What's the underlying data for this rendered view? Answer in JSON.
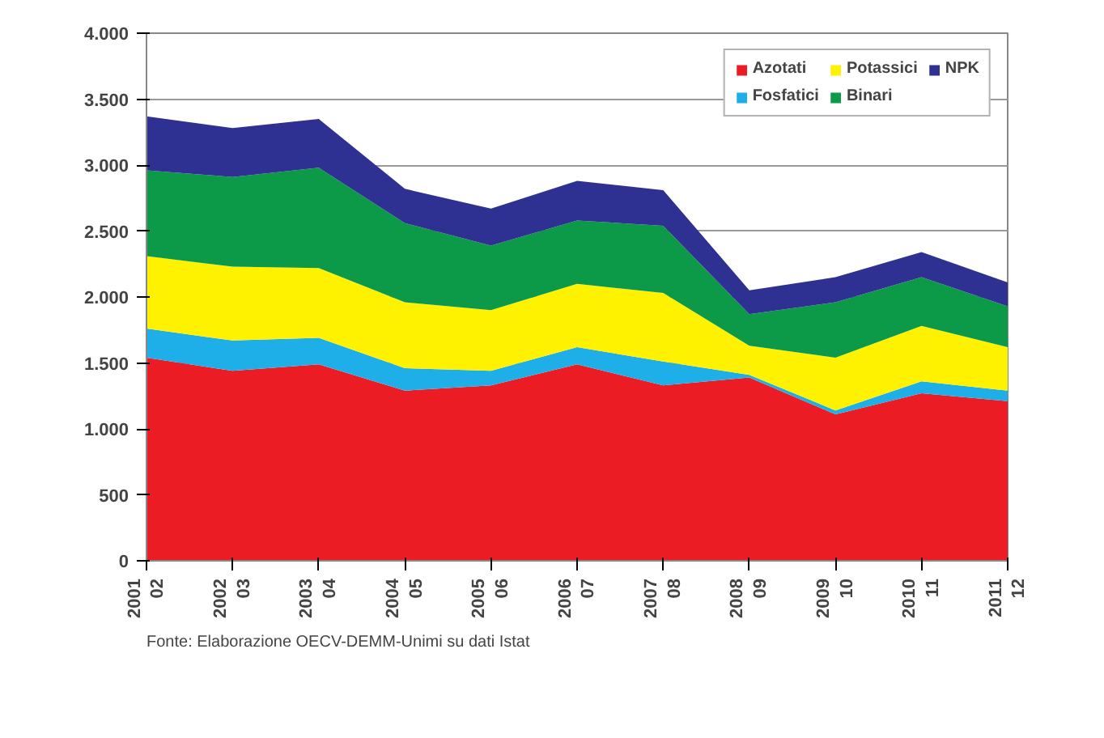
{
  "chart_data": {
    "type": "area",
    "stacked": true,
    "categories": [
      "2001\n02",
      "2002\n03",
      "2003\n04",
      "2004\n05",
      "2005\n06",
      "2006\n07",
      "2007\n08",
      "2008\n09",
      "2009\n10",
      "2010\n11",
      "2011\n12"
    ],
    "series": [
      {
        "name": "Azotati",
        "color": "#ec1c24",
        "values": [
          1540,
          1440,
          1490,
          1290,
          1330,
          1490,
          1330,
          1390,
          1110,
          1270,
          1210
        ]
      },
      {
        "name": "Fosfatici",
        "color": "#1eaee8",
        "values": [
          220,
          230,
          200,
          170,
          110,
          130,
          180,
          20,
          30,
          90,
          80
        ]
      },
      {
        "name": "Potassici",
        "color": "#fff200",
        "values": [
          550,
          560,
          530,
          500,
          460,
          480,
          520,
          220,
          400,
          420,
          330
        ]
      },
      {
        "name": "Binari",
        "color": "#0d9a48",
        "values": [
          650,
          680,
          760,
          600,
          490,
          480,
          510,
          240,
          420,
          370,
          310
        ]
      },
      {
        "name": "NPK",
        "color": "#2e3192",
        "values": [
          410,
          370,
          370,
          260,
          280,
          300,
          270,
          180,
          190,
          190,
          180
        ]
      }
    ],
    "ylim": [
      0,
      4000
    ],
    "yticks": [
      {
        "value": 0,
        "label": "0"
      },
      {
        "value": 500,
        "label": "500"
      },
      {
        "value": 1000,
        "label": "1.000"
      },
      {
        "value": 1500,
        "label": "1.500"
      },
      {
        "value": 2000,
        "label": "2.000"
      },
      {
        "value": 2500,
        "label": "2.500"
      },
      {
        "value": 3000,
        "label": "3.000"
      },
      {
        "value": 3500,
        "label": "3.500"
      },
      {
        "value": 4000,
        "label": "4.000"
      }
    ],
    "grid": "y",
    "legend": "top right",
    "annotations": [
      "Fonte: Elaborazione OECV-DEMM-Unimi su dati Istat"
    ]
  }
}
